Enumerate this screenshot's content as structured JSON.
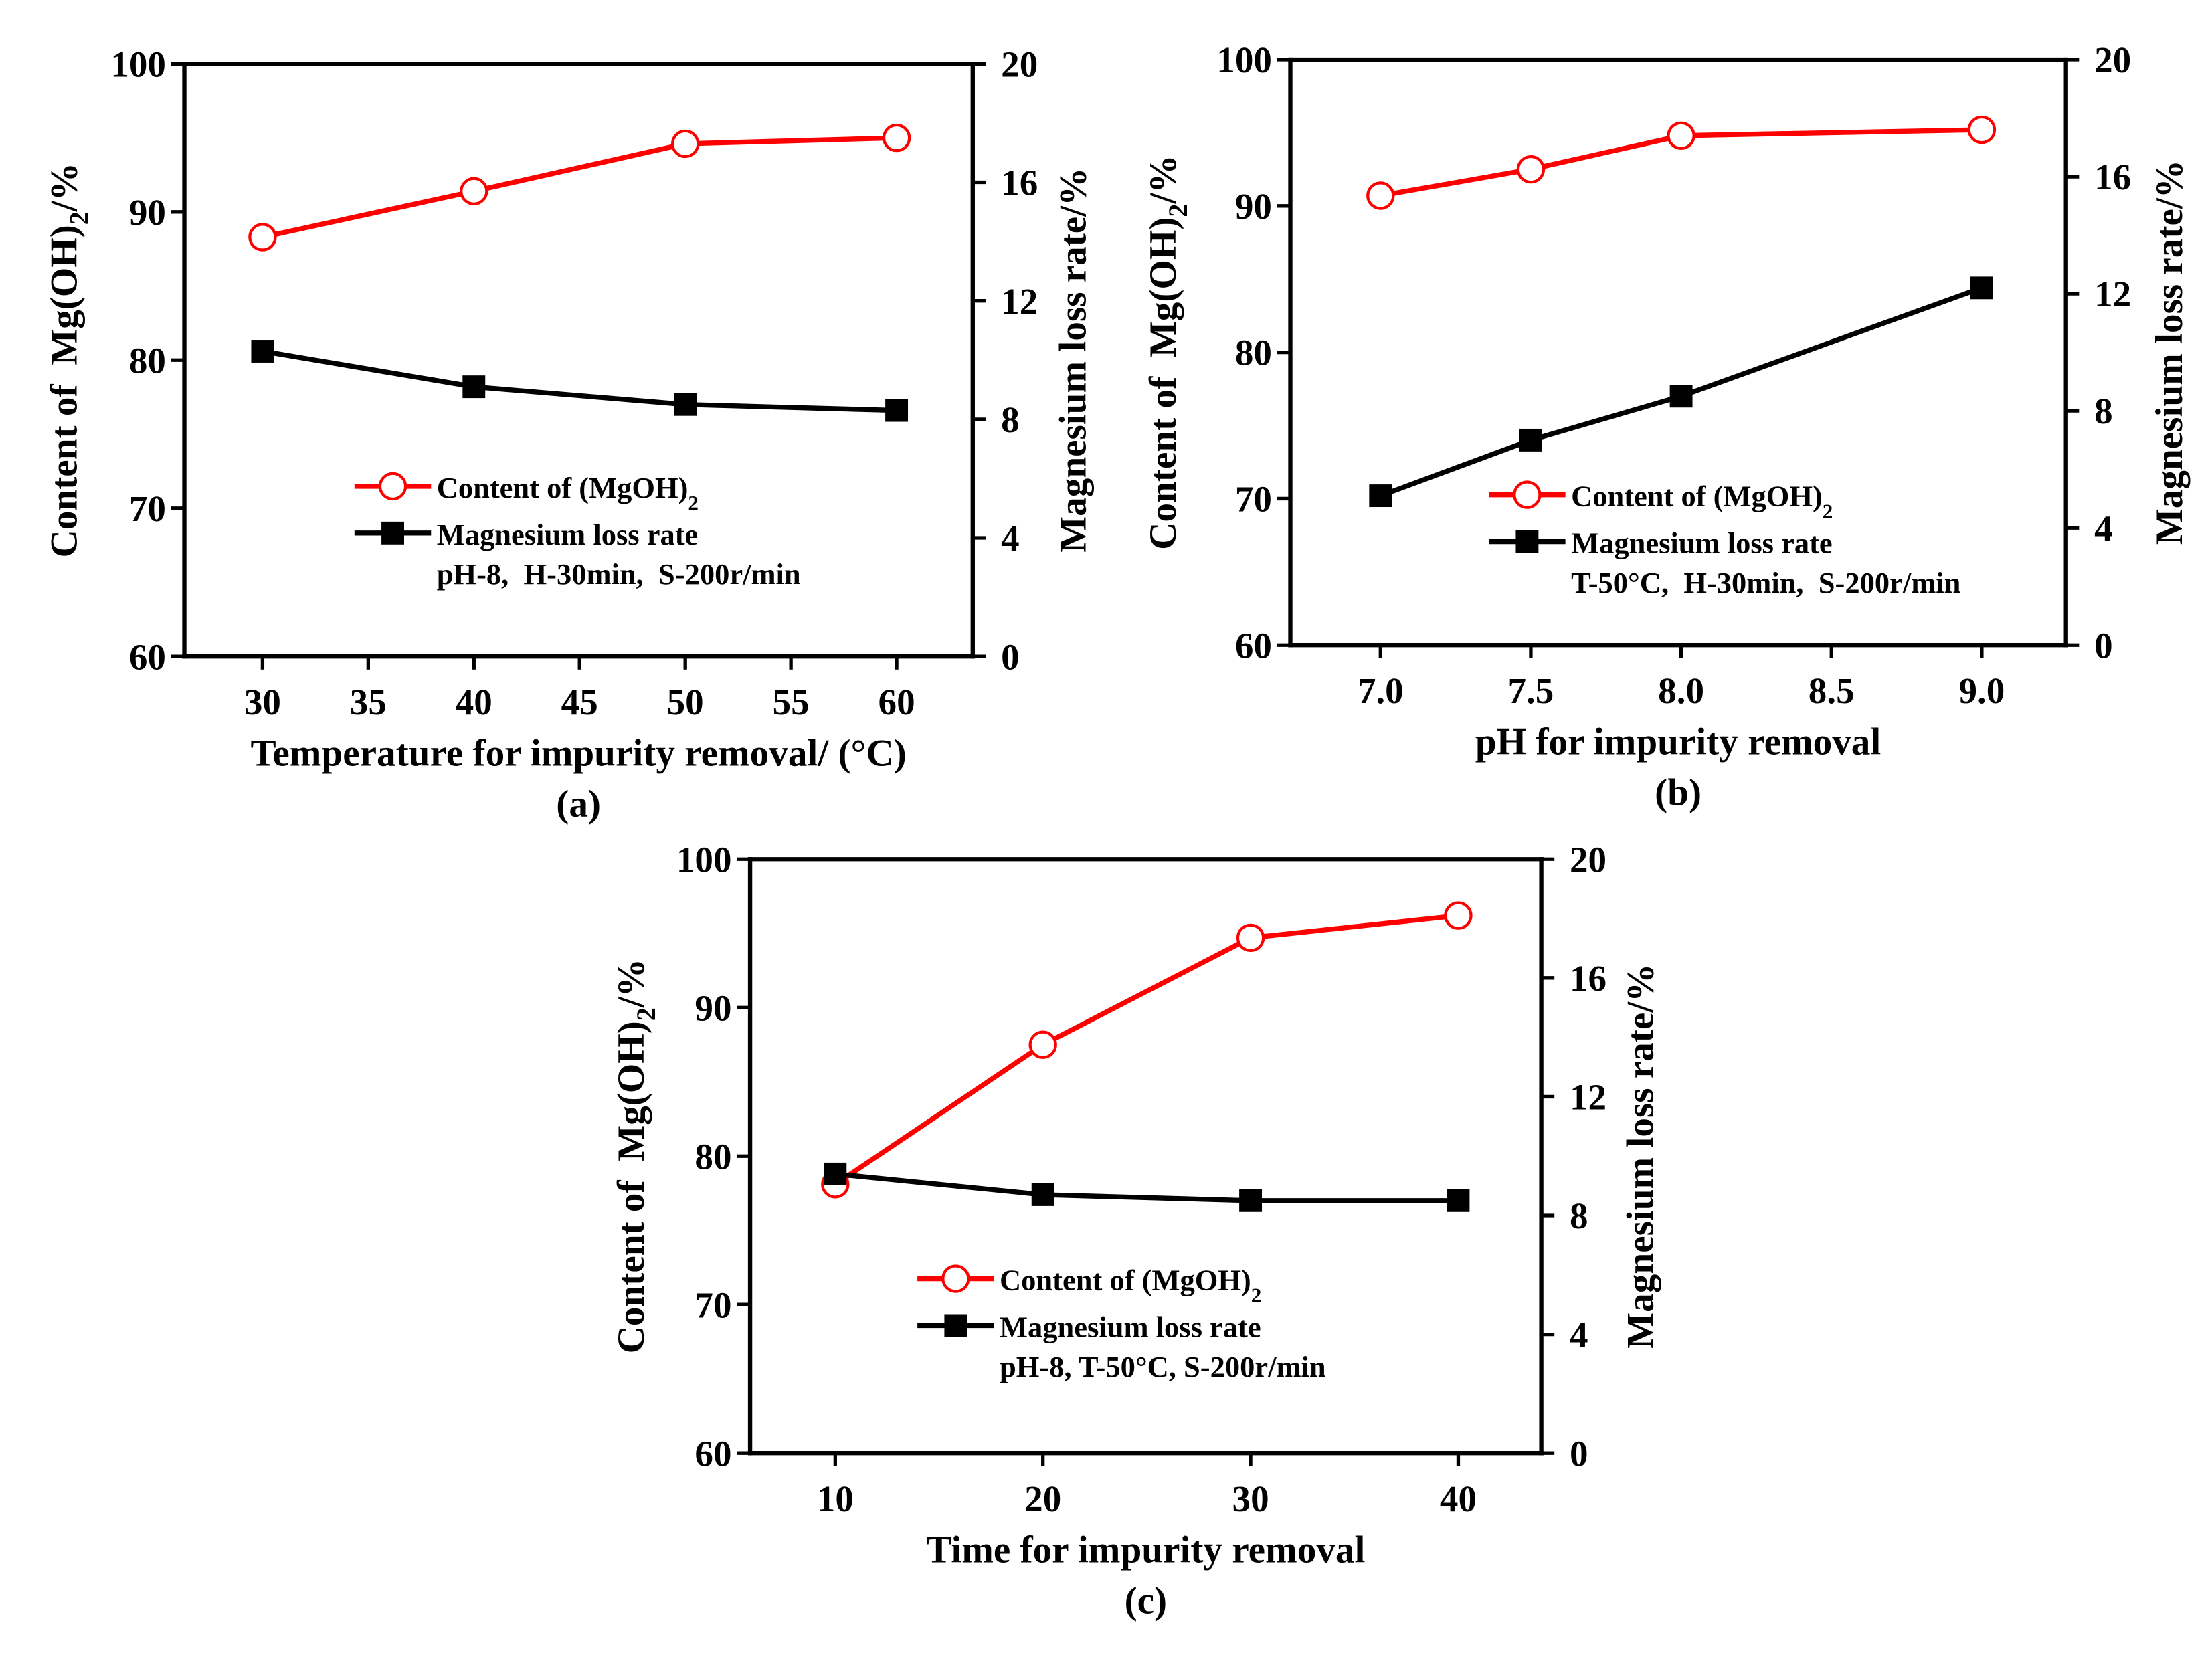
{
  "figure": {
    "background": "#ffffff"
  },
  "chart_data": [
    {
      "panel_label": "(a)",
      "type": "line",
      "xlabel": "Temperature for impurity removal/ (°C)",
      "ylabel": {
        "text": "Content of  Mg(OH)",
        "sub": "2",
        "suffix": "/%"
      },
      "y2label": "Magnesium loss rate/%",
      "x": [
        30,
        40,
        50,
        60
      ],
      "xlim": [
        26.3,
        63.6
      ],
      "xticks": [
        "30",
        "35",
        "40",
        "45",
        "50",
        "55",
        "60"
      ],
      "ylim": [
        60,
        100
      ],
      "yticks": [
        "60",
        "70",
        "80",
        "90",
        "100"
      ],
      "y2lim": [
        0,
        20
      ],
      "y2ticks": [
        "0",
        "4",
        "8",
        "12",
        "16",
        "20"
      ],
      "series": [
        {
          "name": {
            "text": "Content of (MgOH)",
            "sub": "2"
          },
          "color": "#ff0000",
          "marker": "open-circle",
          "use_right_axis": false,
          "values": [
            88.3,
            91.4,
            94.6,
            95.0
          ]
        },
        {
          "name": "Magnesium loss rate",
          "color": "#000000",
          "marker": "filled-square",
          "use_right_axis": true,
          "values": [
            10.3,
            9.1,
            8.5,
            8.3
          ]
        }
      ],
      "legend_note": "pH-8,  H-30min,  S-200r/min",
      "legend_position": "lower-center"
    },
    {
      "panel_label": "(b)",
      "type": "line",
      "xlabel": "pH for impurity removal",
      "ylabel": {
        "text": "Content of  Mg(OH)",
        "sub": "2",
        "suffix": "/%"
      },
      "y2label": "Magnesium loss rate/%",
      "x": [
        7.0,
        7.5,
        8.0,
        9.0
      ],
      "xlim": [
        6.7,
        9.28
      ],
      "xticks": [
        "7.0",
        "7.5",
        "8.0",
        "8.5",
        "9.0"
      ],
      "ylim": [
        60,
        100
      ],
      "yticks": [
        "60",
        "70",
        "80",
        "90",
        "100"
      ],
      "y2lim": [
        0,
        20
      ],
      "y2ticks": [
        "0",
        "4",
        "8",
        "12",
        "16",
        "20"
      ],
      "series": [
        {
          "name": {
            "text": "Content of (MgOH)",
            "sub": "2"
          },
          "color": "#ff0000",
          "marker": "open-circle",
          "use_right_axis": false,
          "values": [
            90.7,
            92.5,
            94.8,
            95.2
          ]
        },
        {
          "name": "Magnesium loss rate",
          "color": "#000000",
          "marker": "filled-square",
          "use_right_axis": true,
          "values": [
            5.1,
            7.0,
            8.5,
            12.2
          ]
        }
      ],
      "legend_note": "T-50°C,  H-30min,  S-200r/min",
      "legend_position": "lower-center"
    },
    {
      "panel_label": "(c)",
      "type": "line",
      "xlabel": "Time for impurity removal",
      "ylabel": {
        "text": "Content of  Mg(OH)",
        "sub": "2",
        "suffix": "/%"
      },
      "y2label": "Magnesium loss rate/%",
      "x": [
        10,
        20,
        30,
        40
      ],
      "xlim": [
        5.9,
        44.0
      ],
      "xticks": [
        "10",
        "20",
        "30",
        "40"
      ],
      "ylim": [
        60,
        100
      ],
      "yticks": [
        "60",
        "70",
        "80",
        "90",
        "100"
      ],
      "y2lim": [
        0,
        20
      ],
      "y2ticks": [
        "0",
        "4",
        "8",
        "12",
        "16",
        "20"
      ],
      "series": [
        {
          "name": {
            "text": "Content of (MgOH)",
            "sub": "2"
          },
          "color": "#ff0000",
          "marker": "open-circle",
          "use_right_axis": false,
          "values": [
            78.1,
            87.5,
            94.7,
            96.2
          ]
        },
        {
          "name": "Magnesium loss rate",
          "color": "#000000",
          "marker": "filled-square",
          "use_right_axis": true,
          "values": [
            9.4,
            8.7,
            8.5,
            8.5
          ]
        }
      ],
      "legend_note": "pH-8, T-50°C, S-200r/min",
      "legend_position": "lower-center"
    }
  ]
}
